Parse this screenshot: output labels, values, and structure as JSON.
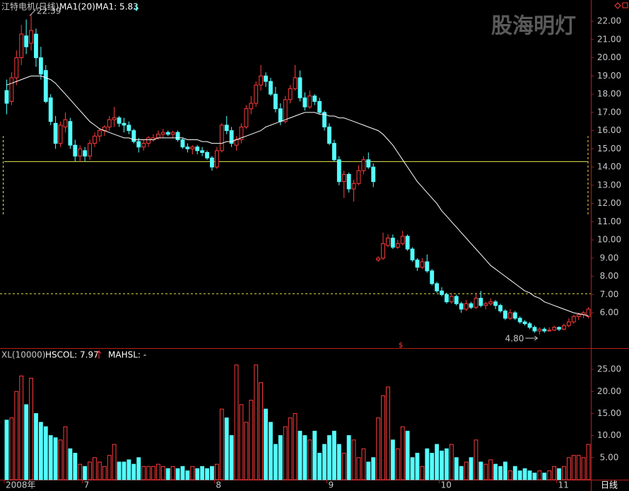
{
  "chart_data": {
    "type": "candlestick",
    "title": "江特电机(日线)",
    "ma_name": "MA1(20)",
    "ma_text": "MA1: 5.83",
    "watermark": "股海明灯",
    "period": "日线",
    "high_label": "22.39",
    "low_label": "4.80",
    "up_color": "#ff3c3c",
    "down_color": "#54ffff",
    "ma_color": "#ffffff",
    "ylim": [
      4.14,
      22.47
    ],
    "yticks": [
      {
        "value": 6,
        "label": "6.00"
      },
      {
        "value": 7,
        "label": "7.00"
      },
      {
        "value": 8,
        "label": "8.00"
      },
      {
        "value": 9,
        "label": "9.00"
      },
      {
        "value": 10,
        "label": "10.00"
      },
      {
        "value": 11,
        "label": "11.00"
      },
      {
        "value": 12,
        "label": "12.00"
      },
      {
        "value": 13,
        "label": "13.00"
      },
      {
        "value": 14,
        "label": "14.00"
      },
      {
        "value": 15,
        "label": "15.00"
      },
      {
        "value": 16,
        "label": "16.00"
      },
      {
        "value": 17,
        "label": "17.00"
      },
      {
        "value": 18,
        "label": "18.00"
      },
      {
        "value": 19,
        "label": "19.00"
      },
      {
        "value": 20,
        "label": "20.00"
      },
      {
        "value": 21,
        "label": "21.00"
      },
      {
        "value": 22,
        "label": "22.00"
      }
    ],
    "ref_lines": {
      "solid": 14.3,
      "dashed": 7.05,
      "bracket": [
        11.4,
        15.7
      ],
      "color": "#e6e64c"
    },
    "categories": [
      "2008年",
      null,
      null,
      null,
      null,
      null,
      null,
      null,
      null,
      null,
      null,
      null,
      null,
      null,
      null,
      null,
      "7",
      null,
      null,
      null,
      null,
      null,
      null,
      null,
      null,
      null,
      null,
      null,
      null,
      null,
      null,
      null,
      null,
      null,
      null,
      null,
      null,
      null,
      null,
      null,
      null,
      null,
      null,
      "8",
      null,
      null,
      null,
      null,
      null,
      null,
      null,
      null,
      null,
      null,
      null,
      null,
      null,
      null,
      null,
      null,
      null,
      null,
      null,
      null,
      null,
      null,
      "9",
      null,
      null,
      null,
      null,
      null,
      null,
      null,
      null,
      null,
      null,
      null,
      null,
      null,
      null,
      null,
      null,
      null,
      null,
      null,
      null,
      null,
      null,
      "10",
      null,
      null,
      null,
      null,
      null,
      null,
      null,
      null,
      null,
      null,
      null,
      null,
      null,
      null,
      null,
      null,
      null,
      null,
      null,
      null,
      null,
      null,
      null,
      "11",
      null,
      null,
      null,
      null,
      null,
      null
    ],
    "candles": [
      {
        "o": 18.2,
        "h": 18.8,
        "l": 16.9,
        "c": 17.5,
        "v": 13.5
      },
      {
        "o": 17.6,
        "h": 19.2,
        "l": 17.4,
        "c": 18.9,
        "v": 14
      },
      {
        "o": 18.9,
        "h": 20.4,
        "l": 18.5,
        "c": 20.0,
        "v": 20
      },
      {
        "o": 20.0,
        "h": 21.8,
        "l": 19.6,
        "c": 21.3,
        "v": 23.5
      },
      {
        "o": 21.2,
        "h": 22.1,
        "l": 20.2,
        "c": 20.6,
        "v": 17
      },
      {
        "o": 20.8,
        "h": 22.39,
        "l": 20.4,
        "c": 21.5,
        "v": 23
      },
      {
        "o": 21.3,
        "h": 21.6,
        "l": 19.5,
        "c": 20.0,
        "v": 15
      },
      {
        "o": 20.0,
        "h": 20.6,
        "l": 18.8,
        "c": 19.1,
        "v": 13
      },
      {
        "o": 19.3,
        "h": 19.6,
        "l": 17.5,
        "c": 17.6,
        "v": 12
      },
      {
        "o": 17.8,
        "h": 18.0,
        "l": 16.3,
        "c": 16.5,
        "v": 10
      },
      {
        "o": 16.4,
        "h": 16.8,
        "l": 15.0,
        "c": 15.3,
        "v": 9.5
      },
      {
        "o": 15.3,
        "h": 16.5,
        "l": 15.1,
        "c": 16.3,
        "v": 9
      },
      {
        "o": 16.2,
        "h": 17.0,
        "l": 15.9,
        "c": 16.6,
        "v": 12
      },
      {
        "o": 16.5,
        "h": 16.7,
        "l": 15.0,
        "c": 15.2,
        "v": 7
      },
      {
        "o": 15.2,
        "h": 15.5,
        "l": 14.3,
        "c": 14.6,
        "v": 6
      },
      {
        "o": 14.6,
        "h": 15.2,
        "l": 14.3,
        "c": 15.0,
        "v": 3.5
      },
      {
        "o": 14.9,
        "h": 15.1,
        "l": 14.3,
        "c": 14.6,
        "v": 3
      },
      {
        "o": 14.6,
        "h": 15.5,
        "l": 14.4,
        "c": 15.3,
        "v": 4
      },
      {
        "o": 15.3,
        "h": 15.9,
        "l": 15.1,
        "c": 15.7,
        "v": 5
      },
      {
        "o": 15.7,
        "h": 16.1,
        "l": 15.4,
        "c": 16.0,
        "v": 4
      },
      {
        "o": 16.0,
        "h": 16.3,
        "l": 15.7,
        "c": 16.2,
        "v": 3
      },
      {
        "o": 16.2,
        "h": 16.8,
        "l": 16.0,
        "c": 16.6,
        "v": 5.5
      },
      {
        "o": 16.6,
        "h": 17.3,
        "l": 16.2,
        "c": 16.7,
        "v": 8
      },
      {
        "o": 16.7,
        "h": 16.8,
        "l": 16.2,
        "c": 16.4,
        "v": 4
      },
      {
        "o": 16.4,
        "h": 16.7,
        "l": 15.9,
        "c": 16.3,
        "v": 4
      },
      {
        "o": 16.3,
        "h": 16.5,
        "l": 15.8,
        "c": 16.0,
        "v": 4.5
      },
      {
        "o": 16.0,
        "h": 16.1,
        "l": 15.3,
        "c": 15.4,
        "v": 3.5
      },
      {
        "o": 15.4,
        "h": 15.6,
        "l": 14.8,
        "c": 15.1,
        "v": 5
      },
      {
        "o": 15.1,
        "h": 15.5,
        "l": 14.9,
        "c": 15.3,
        "v": 3
      },
      {
        "o": 15.3,
        "h": 15.7,
        "l": 15.1,
        "c": 15.6,
        "v": 3
      },
      {
        "o": 15.5,
        "h": 15.8,
        "l": 15.4,
        "c": 15.6,
        "v": 3
      },
      {
        "o": 15.6,
        "h": 16.0,
        "l": 15.5,
        "c": 15.8,
        "v": 3.5
      },
      {
        "o": 15.8,
        "h": 16.1,
        "l": 15.6,
        "c": 15.9,
        "v": 3
      },
      {
        "o": 15.9,
        "h": 16.0,
        "l": 15.7,
        "c": 15.8,
        "v": 2.5
      },
      {
        "o": 15.8,
        "h": 16.0,
        "l": 15.6,
        "c": 15.9,
        "v": 3
      },
      {
        "o": 15.9,
        "h": 16.0,
        "l": 15.4,
        "c": 15.5,
        "v": 2.5
      },
      {
        "o": 15.5,
        "h": 15.6,
        "l": 15.0,
        "c": 15.1,
        "v": 3
      },
      {
        "o": 15.1,
        "h": 15.3,
        "l": 14.8,
        "c": 15.0,
        "v": 2
      },
      {
        "o": 15.0,
        "h": 15.2,
        "l": 14.7,
        "c": 15.1,
        "v": 3
      },
      {
        "o": 15.1,
        "h": 15.2,
        "l": 14.7,
        "c": 14.9,
        "v": 2.5
      },
      {
        "o": 14.9,
        "h": 15.1,
        "l": 14.6,
        "c": 14.8,
        "v": 3
      },
      {
        "o": 14.8,
        "h": 14.9,
        "l": 14.4,
        "c": 14.5,
        "v": 2.5
      },
      {
        "o": 14.5,
        "h": 14.6,
        "l": 13.8,
        "c": 14.0,
        "v": 3
      },
      {
        "o": 14.0,
        "h": 15.1,
        "l": 13.9,
        "c": 14.9,
        "v": 3.5
      },
      {
        "o": 14.9,
        "h": 16.4,
        "l": 14.8,
        "c": 16.3,
        "v": 16
      },
      {
        "o": 16.3,
        "h": 16.8,
        "l": 15.8,
        "c": 16.0,
        "v": 14
      },
      {
        "o": 16.0,
        "h": 16.2,
        "l": 15.1,
        "c": 15.3,
        "v": 10
      },
      {
        "o": 15.2,
        "h": 15.7,
        "l": 14.9,
        "c": 15.5,
        "v": 26
      },
      {
        "o": 15.5,
        "h": 16.4,
        "l": 15.3,
        "c": 16.2,
        "v": 17
      },
      {
        "o": 16.2,
        "h": 17.4,
        "l": 16.1,
        "c": 17.2,
        "v": 13
      },
      {
        "o": 17.2,
        "h": 17.9,
        "l": 16.9,
        "c": 17.5,
        "v": 18
      },
      {
        "o": 17.5,
        "h": 18.7,
        "l": 17.3,
        "c": 18.5,
        "v": 26
      },
      {
        "o": 18.5,
        "h": 19.6,
        "l": 18.2,
        "c": 19.0,
        "v": 22
      },
      {
        "o": 19.0,
        "h": 19.2,
        "l": 18.4,
        "c": 18.7,
        "v": 16
      },
      {
        "o": 18.7,
        "h": 18.9,
        "l": 17.9,
        "c": 18.0,
        "v": 13
      },
      {
        "o": 18.0,
        "h": 18.4,
        "l": 17.0,
        "c": 17.2,
        "v": 8
      },
      {
        "o": 17.2,
        "h": 17.5,
        "l": 16.3,
        "c": 16.5,
        "v": 10
      },
      {
        "o": 16.5,
        "h": 17.9,
        "l": 16.4,
        "c": 17.7,
        "v": 12
      },
      {
        "o": 17.7,
        "h": 18.5,
        "l": 17.5,
        "c": 18.3,
        "v": 14
      },
      {
        "o": 18.3,
        "h": 19.6,
        "l": 18.2,
        "c": 18.9,
        "v": 15
      },
      {
        "o": 18.9,
        "h": 19.3,
        "l": 17.6,
        "c": 17.8,
        "v": 11
      },
      {
        "o": 17.8,
        "h": 18.1,
        "l": 17.1,
        "c": 17.3,
        "v": 10
      },
      {
        "o": 17.3,
        "h": 18.2,
        "l": 17.2,
        "c": 17.9,
        "v": 9
      },
      {
        "o": 17.9,
        "h": 18.0,
        "l": 17.4,
        "c": 17.6,
        "v": 11
      },
      {
        "o": 17.6,
        "h": 17.8,
        "l": 16.9,
        "c": 17.0,
        "v": 6
      },
      {
        "o": 17.0,
        "h": 17.1,
        "l": 16.0,
        "c": 16.2,
        "v": 8
      },
      {
        "o": 16.2,
        "h": 16.4,
        "l": 15.2,
        "c": 15.3,
        "v": 10
      },
      {
        "o": 15.3,
        "h": 15.5,
        "l": 14.3,
        "c": 14.4,
        "v": 11
      },
      {
        "o": 14.4,
        "h": 14.6,
        "l": 13.0,
        "c": 13.2,
        "v": 8
      },
      {
        "o": 13.2,
        "h": 13.8,
        "l": 12.3,
        "c": 13.6,
        "v": 6
      },
      {
        "o": 13.6,
        "h": 13.7,
        "l": 12.6,
        "c": 12.8,
        "v": 10
      },
      {
        "o": 12.8,
        "h": 13.3,
        "l": 12.1,
        "c": 13.1,
        "v": 9
      },
      {
        "o": 13.1,
        "h": 14.1,
        "l": 13.0,
        "c": 13.8,
        "v": 5
      },
      {
        "o": 13.8,
        "h": 14.6,
        "l": 13.6,
        "c": 14.4,
        "v": 7
      },
      {
        "o": 14.4,
        "h": 14.8,
        "l": 13.9,
        "c": 14.0,
        "v": 4
      },
      {
        "o": 14.0,
        "h": 14.2,
        "l": 12.9,
        "c": 13.2,
        "v": 5
      },
      {
        "o": 8.9,
        "h": 9.1,
        "l": 8.8,
        "c": 9.0,
        "v": 14
      },
      {
        "o": 9.0,
        "h": 10.4,
        "l": 8.9,
        "c": 9.8,
        "v": 19
      },
      {
        "o": 9.7,
        "h": 10.3,
        "l": 9.6,
        "c": 10.1,
        "v": 21
      },
      {
        "o": 10.1,
        "h": 10.3,
        "l": 9.5,
        "c": 9.6,
        "v": 9
      },
      {
        "o": 9.6,
        "h": 10.0,
        "l": 9.5,
        "c": 9.8,
        "v": 7
      },
      {
        "o": 9.8,
        "h": 10.5,
        "l": 9.7,
        "c": 10.2,
        "v": 12
      },
      {
        "o": 10.2,
        "h": 10.3,
        "l": 9.4,
        "c": 9.5,
        "v": 11
      },
      {
        "o": 9.5,
        "h": 9.6,
        "l": 8.8,
        "c": 8.9,
        "v": 5
      },
      {
        "o": 8.9,
        "h": 9.0,
        "l": 8.3,
        "c": 8.5,
        "v": 6
      },
      {
        "o": 8.5,
        "h": 9.0,
        "l": 8.4,
        "c": 8.8,
        "v": 3
      },
      {
        "o": 8.8,
        "h": 9.2,
        "l": 8.2,
        "c": 8.3,
        "v": 7
      },
      {
        "o": 8.3,
        "h": 8.4,
        "l": 7.5,
        "c": 7.6,
        "v": 6
      },
      {
        "o": 7.6,
        "h": 7.7,
        "l": 7.1,
        "c": 7.2,
        "v": 8
      },
      {
        "o": 7.2,
        "h": 7.4,
        "l": 6.9,
        "c": 7.0,
        "v": 6.5
      },
      {
        "o": 7.0,
        "h": 7.1,
        "l": 6.5,
        "c": 6.6,
        "v": 7
      },
      {
        "o": 6.6,
        "h": 7.1,
        "l": 6.5,
        "c": 6.9,
        "v": 8
      },
      {
        "o": 6.9,
        "h": 7.0,
        "l": 6.4,
        "c": 6.5,
        "v": 5
      },
      {
        "o": 6.5,
        "h": 6.6,
        "l": 6.0,
        "c": 6.2,
        "v": 3
      },
      {
        "o": 6.2,
        "h": 6.7,
        "l": 6.1,
        "c": 6.5,
        "v": 4
      },
      {
        "o": 6.5,
        "h": 6.6,
        "l": 6.2,
        "c": 6.3,
        "v": 5
      },
      {
        "o": 6.3,
        "h": 7.1,
        "l": 6.2,
        "c": 6.8,
        "v": 9
      },
      {
        "o": 6.8,
        "h": 7.2,
        "l": 6.3,
        "c": 6.4,
        "v": 4
      },
      {
        "o": 6.4,
        "h": 6.6,
        "l": 6.2,
        "c": 6.5,
        "v": 3.5
      },
      {
        "o": 6.5,
        "h": 6.8,
        "l": 6.4,
        "c": 6.6,
        "v": 4.5
      },
      {
        "o": 6.6,
        "h": 6.7,
        "l": 6.2,
        "c": 6.4,
        "v": 3.5
      },
      {
        "o": 6.4,
        "h": 6.5,
        "l": 6.0,
        "c": 6.1,
        "v": 3
      },
      {
        "o": 6.1,
        "h": 6.2,
        "l": 5.6,
        "c": 5.7,
        "v": 4
      },
      {
        "o": 5.7,
        "h": 6.2,
        "l": 5.6,
        "c": 6.0,
        "v": 2
      },
      {
        "o": 6.0,
        "h": 6.1,
        "l": 5.6,
        "c": 5.7,
        "v": 3
      },
      {
        "o": 5.7,
        "h": 5.8,
        "l": 5.4,
        "c": 5.5,
        "v": 2
      },
      {
        "o": 5.5,
        "h": 5.6,
        "l": 5.3,
        "c": 5.4,
        "v": 2.5
      },
      {
        "o": 5.4,
        "h": 5.5,
        "l": 5.1,
        "c": 5.2,
        "v": 2
      },
      {
        "o": 5.2,
        "h": 5.3,
        "l": 4.9,
        "c": 5.0,
        "v": 1.5
      },
      {
        "o": 5.0,
        "h": 5.2,
        "l": 4.8,
        "c": 5.1,
        "v": 2
      },
      {
        "o": 5.1,
        "h": 5.2,
        "l": 4.9,
        "c": 5.0,
        "v": 1.5
      },
      {
        "o": 5.0,
        "h": 5.2,
        "l": 4.95,
        "c": 5.05,
        "v": 2
      },
      {
        "o": 5.05,
        "h": 5.3,
        "l": 5.0,
        "c": 5.2,
        "v": 3
      },
      {
        "o": 5.2,
        "h": 5.25,
        "l": 5.0,
        "c": 5.1,
        "v": 2.5
      },
      {
        "o": 5.1,
        "h": 5.4,
        "l": 5.05,
        "c": 5.3,
        "v": 3
      },
      {
        "o": 5.3,
        "h": 5.7,
        "l": 5.2,
        "c": 5.5,
        "v": 5
      },
      {
        "o": 5.5,
        "h": 5.9,
        "l": 5.4,
        "c": 5.8,
        "v": 5.5
      },
      {
        "o": 5.8,
        "h": 6.0,
        "l": 5.6,
        "c": 5.9,
        "v": 5.5
      },
      {
        "o": 5.9,
        "h": 6.1,
        "l": 5.7,
        "c": 6.0,
        "v": 5
      },
      {
        "o": 5.8,
        "h": 6.3,
        "l": 5.7,
        "c": 6.2,
        "v": 8
      }
    ],
    "ma": [
      18.5,
      18.6,
      18.7,
      18.8,
      18.9,
      19.0,
      19.0,
      19.0,
      18.9,
      18.8,
      18.6,
      18.3,
      18.0,
      17.7,
      17.4,
      17.1,
      16.8,
      16.5,
      16.3,
      16.1,
      16.0,
      15.9,
      15.8,
      15.7,
      15.6,
      15.6,
      15.5,
      15.5,
      15.5,
      15.5,
      15.5,
      15.6,
      15.6,
      15.6,
      15.6,
      15.6,
      15.6,
      15.5,
      15.5,
      15.5,
      15.4,
      15.4,
      15.3,
      15.3,
      15.3,
      15.4,
      15.4,
      15.5,
      15.6,
      15.7,
      15.8,
      15.9,
      16.0,
      16.2,
      16.3,
      16.4,
      16.5,
      16.6,
      16.7,
      16.8,
      16.9,
      17.0,
      17.0,
      17.0,
      16.9,
      16.9,
      16.8,
      16.8,
      16.7,
      16.7,
      16.6,
      16.5,
      16.4,
      16.3,
      16.2,
      16.1,
      16.0,
      15.8,
      15.5,
      15.2,
      14.8,
      14.4,
      14.0,
      13.6,
      13.2,
      12.9,
      12.6,
      12.3,
      12.0,
      11.6,
      11.3,
      11.0,
      10.7,
      10.4,
      10.1,
      9.8,
      9.5,
      9.2,
      8.9,
      8.6,
      8.4,
      8.2,
      8.0,
      7.8,
      7.6,
      7.4,
      7.2,
      7.1,
      6.9,
      6.8,
      6.6,
      6.5,
      6.4,
      6.3,
      6.2,
      6.1,
      6.0,
      5.95,
      5.9,
      5.83
    ],
    "volume": {
      "title": "XL(10000)",
      "hscol": "HSCOL: 7.97",
      "mahsl": "MAHSL: -",
      "ylim": [
        0,
        29.5
      ],
      "yticks": [
        {
          "value": 5,
          "label": "5.00"
        },
        {
          "value": 10,
          "label": "10.00"
        },
        {
          "value": 15,
          "label": "15.00"
        },
        {
          "value": 20,
          "label": "20.00"
        },
        {
          "value": 25,
          "label": "25.00"
        }
      ]
    }
  }
}
